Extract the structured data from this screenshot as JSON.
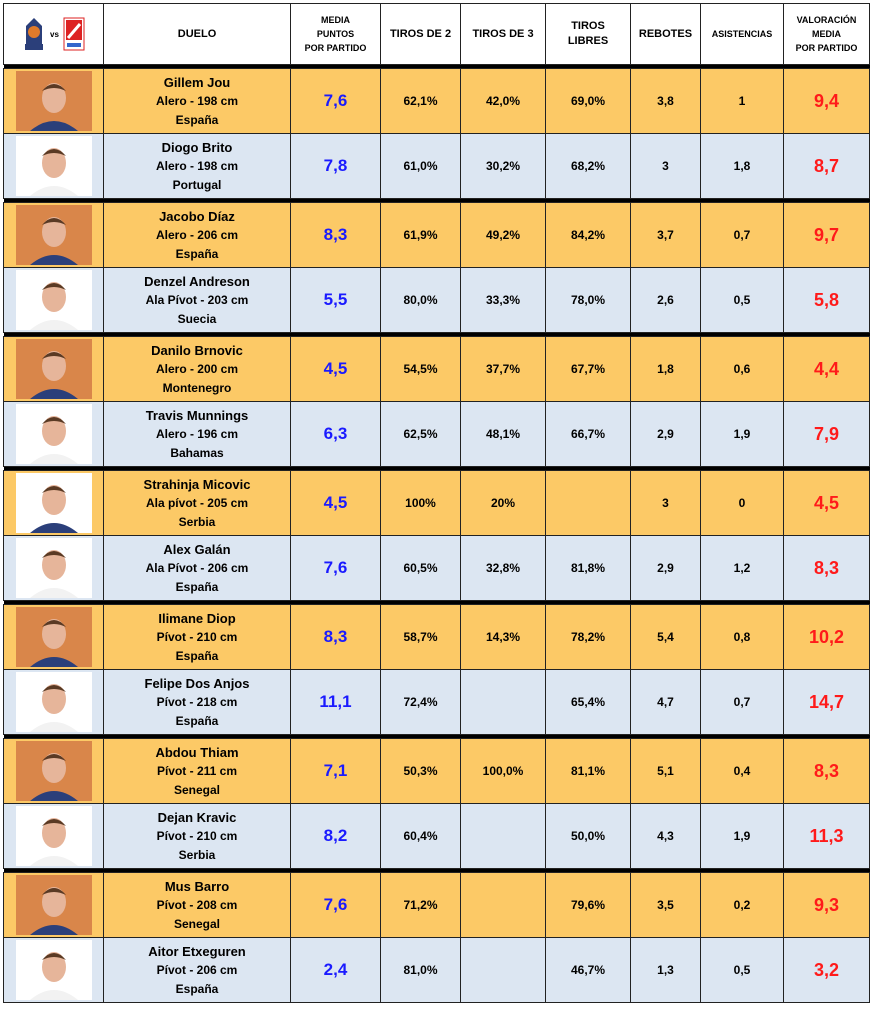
{
  "header": {
    "vs": "vs",
    "duelo": "DUELO",
    "media_puntos": [
      "MEDIA",
      "PUNTOS",
      "POR PARTIDO"
    ],
    "tiros2": "TIROS DE 2",
    "tiros3": "TIROS DE 3",
    "tiros_libres": [
      "TIROS",
      "LIBRES"
    ],
    "rebotes": "REBOTES",
    "asistencias": "ASISTENCIAS",
    "valoracion": [
      "VALORACIÓN",
      "MEDIA",
      "POR PARTIDO"
    ]
  },
  "colors": {
    "team_a_row": "#FCC966",
    "team_b_row": "#DCE6F2",
    "points": "#1a1aff",
    "valoracion": "#ff1a1a"
  },
  "players": [
    {
      "name": "Gillem Jou",
      "pos": "Alero - 198 cm",
      "country": "España",
      "pts": "7,6",
      "t2": "62,1%",
      "t3": "42,0%",
      "tl": "69,0%",
      "reb": "3,8",
      "ast": "1",
      "val": "9,4",
      "team": "a"
    },
    {
      "name": "Diogo Brito",
      "pos": "Alero - 198 cm",
      "country": "Portugal",
      "pts": "7,8",
      "t2": "61,0%",
      "t3": "30,2%",
      "tl": "68,2%",
      "reb": "3",
      "ast": "1,8",
      "val": "8,7",
      "team": "b"
    },
    {
      "name": "Jacobo Díaz",
      "pos": "Alero - 206 cm",
      "country": "España",
      "pts": "8,3",
      "t2": "61,9%",
      "t3": "49,2%",
      "tl": "84,2%",
      "reb": "3,7",
      "ast": "0,7",
      "val": "9,7",
      "team": "a"
    },
    {
      "name": "Denzel Andreson",
      "pos": "Ala Pívot - 203 cm",
      "country": "Suecia",
      "pts": "5,5",
      "t2": "80,0%",
      "t3": "33,3%",
      "tl": "78,0%",
      "reb": "2,6",
      "ast": "0,5",
      "val": "5,8",
      "team": "b"
    },
    {
      "name": "Danilo Brnovic",
      "pos": "Alero - 200 cm",
      "country": "Montenegro",
      "pts": "4,5",
      "t2": "54,5%",
      "t3": "37,7%",
      "tl": "67,7%",
      "reb": "1,8",
      "ast": "0,6",
      "val": "4,4",
      "team": "a"
    },
    {
      "name": "Travis Munnings",
      "pos": "Alero - 196 cm",
      "country": "Bahamas",
      "pts": "6,3",
      "t2": "62,5%",
      "t3": "48,1%",
      "tl": "66,7%",
      "reb": "2,9",
      "ast": "1,9",
      "val": "7,9",
      "team": "b"
    },
    {
      "name": "Strahinja Micovic",
      "pos": "Ala pívot - 205 cm",
      "country": "Serbia",
      "pts": "4,5",
      "t2": "100%",
      "t3": "20%",
      "tl": "",
      "reb": "3",
      "ast": "0",
      "val": "4,5",
      "team": "a"
    },
    {
      "name": "Alex Galán",
      "pos": "Ala Pívot - 206 cm",
      "country": "España",
      "pts": "7,6",
      "t2": "60,5%",
      "t3": "32,8%",
      "tl": "81,8%",
      "reb": "2,9",
      "ast": "1,2",
      "val": "8,3",
      "team": "b"
    },
    {
      "name": "Ilimane Diop",
      "pos": "Pívot - 210 cm",
      "country": "España",
      "pts": "8,3",
      "t2": "58,7%",
      "t3": "14,3%",
      "tl": "78,2%",
      "reb": "5,4",
      "ast": "0,8",
      "val": "10,2",
      "team": "a"
    },
    {
      "name": "Felipe Dos Anjos",
      "pos": "Pívot - 218 cm",
      "country": "España",
      "pts": "11,1",
      "t2": "72,4%",
      "t3": "",
      "tl": "65,4%",
      "reb": "4,7",
      "ast": "0,7",
      "val": "14,7",
      "team": "b"
    },
    {
      "name": "Abdou Thiam",
      "pos": "Pívot - 211 cm",
      "country": "Senegal",
      "pts": "7,1",
      "t2": "50,3%",
      "t3": "100,0%",
      "tl": "81,1%",
      "reb": "5,1",
      "ast": "0,4",
      "val": "8,3",
      "team": "a"
    },
    {
      "name": "Dejan Kravic",
      "pos": "Pívot - 210 cm",
      "country": "Serbia",
      "pts": "8,2",
      "t2": "60,4%",
      "t3": "",
      "tl": "50,0%",
      "reb": "4,3",
      "ast": "1,9",
      "val": "11,3",
      "team": "b"
    },
    {
      "name": "Mus Barro",
      "pos": "Pívot - 208 cm",
      "country": "Senegal",
      "pts": "7,6",
      "t2": "71,2%",
      "t3": "",
      "tl": "79,6%",
      "reb": "3,5",
      "ast": "0,2",
      "val": "9,3",
      "team": "a"
    },
    {
      "name": "Aitor Etxeguren",
      "pos": "Pívot - 206 cm",
      "country": "España",
      "pts": "2,4",
      "t2": "81,0%",
      "t3": "",
      "tl": "46,7%",
      "reb": "1,3",
      "ast": "0,5",
      "val": "3,2",
      "team": "b"
    }
  ]
}
